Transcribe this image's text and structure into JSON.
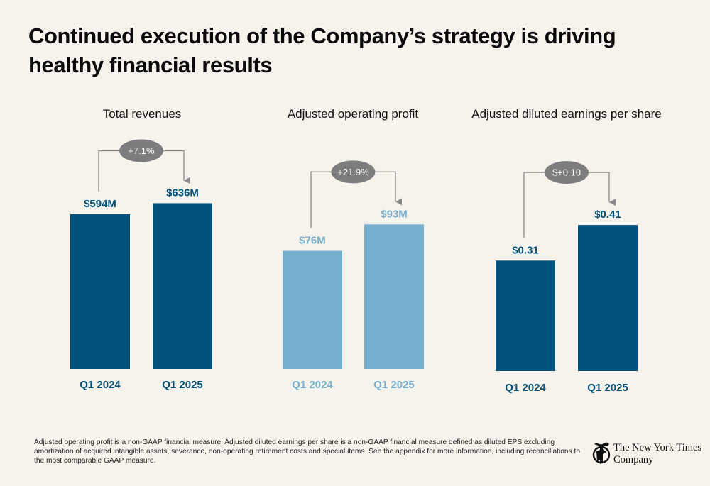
{
  "title": "Continued execution of the Company’s strategy is driving healthy financial results",
  "chart_data": [
    {
      "type": "bar",
      "title": "Total revenues",
      "categories": [
        "Q1 2024",
        "Q1 2025"
      ],
      "values": [
        594,
        636
      ],
      "value_labels": [
        "$594M",
        "$636M"
      ],
      "unit": "$M",
      "change_label": "+7.1%",
      "color": "#00517c",
      "label_color": "#00517c",
      "ylim": [
        0,
        640
      ],
      "grid": false
    },
    {
      "type": "bar",
      "title": "Adjusted operating profit",
      "categories": [
        "Q1 2024",
        "Q1 2025"
      ],
      "values": [
        76,
        93
      ],
      "value_labels": [
        "$76M",
        "$93M"
      ],
      "unit": "$M",
      "change_label": "+21.9%",
      "color": "#77afcf",
      "label_color": "#77afcf",
      "ylim": [
        0,
        100
      ],
      "grid": false
    },
    {
      "type": "bar",
      "title": "Adjusted diluted earnings per share",
      "categories": [
        "Q1 2024",
        "Q1 2025"
      ],
      "values": [
        0.31,
        0.41
      ],
      "value_labels": [
        "$0.31",
        "$0.41"
      ],
      "unit": "$",
      "change_label": "$+0.10",
      "color": "#00517c",
      "label_color": "#00517c",
      "ylim": [
        0,
        0.45
      ],
      "grid": false
    }
  ],
  "footnote": "Adjusted operating profit is a non-GAAP financial measure. Adjusted diluted earnings per share is a non-GAAP financial measure defined as diluted EPS excluding amortization of acquired intangible assets, severance, non-operating retirement costs and special items. See the appendix for more information, including reconciliations to the most comparable GAAP measure.",
  "logo": {
    "line1": "The New York Times",
    "line2": "Company",
    "icon": "nyt-t-logo-icon"
  },
  "colors": {
    "background": "#f6f2ec",
    "badge": "#7d7d7d",
    "connector": "#8a8a8a"
  }
}
